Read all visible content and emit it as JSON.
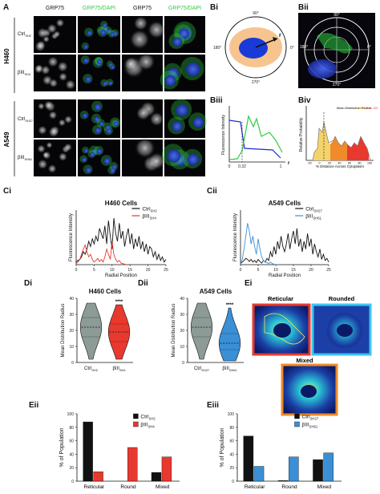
{
  "panel_letters": {
    "A": "A",
    "Bi": "Bi",
    "Bii": "Bii",
    "Biii": "Biii",
    "Biv": "Biv",
    "Ci": "Ci",
    "Cii": "Cii",
    "Di": "Di",
    "Dii": "Dii",
    "Ei": "Ei",
    "Eii": "Eii",
    "Eiii": "Eiii"
  },
  "panel_a": {
    "col_headers": [
      "GRP75",
      "GRP75/DAPI",
      "GRP75",
      "GRP75/DAPI"
    ],
    "col_header_colors": [
      "#ffffff",
      "#2ecc40",
      "#ffffff",
      "#2ecc40"
    ],
    "groups": [
      "H460",
      "A549"
    ],
    "rows": [
      {
        "base": "Ctrl",
        "sub": "SH2"
      },
      {
        "base": "βIII",
        "sub": "SH4"
      },
      {
        "base": "Ctrl",
        "sub": "SH27"
      },
      {
        "base": "βIII",
        "sub": "SH61"
      }
    ]
  },
  "panel_bi": {
    "angles": [
      "90°",
      "0°",
      "180°",
      "270°"
    ],
    "r_label": "r"
  },
  "panel_bii": {
    "angles": [
      "90°",
      "0°",
      "180°",
      "270°"
    ]
  },
  "panel_biii": {
    "ylabel": "Fluorescence Intensity",
    "x_ticks": [
      "0",
      "0.32",
      "1"
    ],
    "r_label": "r"
  },
  "panel_biv": {
    "ylabel": "Relative Probability",
    "xlabel": "% Distance Across Cytoplasm",
    "x_ticks": [
      "-20",
      "0",
      "20",
      "40",
      "60",
      "80",
      "100"
    ],
    "annotation": "Mean Distribution Radius",
    "legend_items": [
      "0-32",
      "32-66",
      "66-100"
    ]
  },
  "chart_data": [
    {
      "panel": "Ci",
      "type": "line",
      "title": "H460 Cells",
      "xlabel": "Radial Position",
      "ylabel": "Fluorescence Intensity",
      "xlim": [
        0,
        25
      ],
      "x_ticks": [
        "0",
        "5",
        "10",
        "15",
        "20",
        "25"
      ],
      "series": [
        {
          "name": "Ctrl",
          "sub": "SH2",
          "color": "#111111",
          "x": [
            0,
            0.5,
            1,
            1.5,
            2,
            2.5,
            3,
            3.5,
            4,
            4.5,
            5,
            5.5,
            6,
            6.5,
            7,
            7.5,
            8,
            8.5,
            9,
            9.5,
            10,
            10.5,
            11,
            11.5,
            12,
            12.5,
            13,
            13.5,
            14,
            14.5,
            15,
            15.5,
            16,
            16.5,
            17,
            17.5,
            18,
            18.5,
            19,
            19.5,
            20,
            20.5,
            21,
            21.5,
            22,
            22.5,
            23,
            23.5,
            24,
            24.5,
            25
          ],
          "y": [
            0.05,
            0.08,
            0.1,
            0.15,
            0.25,
            0.2,
            0.3,
            0.45,
            0.35,
            0.5,
            0.4,
            0.55,
            0.45,
            0.7,
            0.6,
            0.5,
            0.75,
            0.4,
            0.85,
            0.55,
            0.3,
            0.9,
            0.6,
            0.45,
            0.8,
            0.5,
            0.65,
            0.35,
            0.55,
            0.7,
            0.4,
            0.6,
            0.3,
            0.5,
            0.35,
            0.55,
            0.3,
            0.45,
            0.25,
            0.4,
            0.2,
            0.35,
            0.3,
            0.15,
            0.25,
            0.1,
            0.2,
            0.08,
            0.15,
            0.05,
            0.1
          ]
        },
        {
          "name": "βIII",
          "sub": "SH4",
          "color": "#e8392f",
          "x": [
            0,
            0.5,
            1,
            1.5,
            2,
            2.5,
            3,
            3.5,
            4,
            4.5,
            5,
            5.5,
            6,
            6.5,
            7,
            7.5,
            8,
            8.5,
            9,
            9.5,
            10,
            10.5,
            11,
            11.5,
            12,
            12.5,
            13,
            13.5,
            14
          ],
          "y": [
            0.02,
            0.05,
            0.1,
            0.2,
            0.3,
            0.38,
            0.25,
            0.15,
            0.2,
            0.1,
            0.05,
            0.08,
            0.12,
            0.06,
            0.1,
            0.05,
            0.15,
            0.3,
            0.2,
            0.1,
            0.45,
            0.2,
            0.1,
            0.05,
            0.08,
            0.03,
            0.02,
            0.01,
            0.0
          ]
        }
      ]
    },
    {
      "panel": "Cii",
      "type": "line",
      "title": "A549 Cells",
      "xlabel": "Radial Position",
      "ylabel": "Fluorescence Intensity",
      "xlim": [
        0,
        25
      ],
      "x_ticks": [
        "0",
        "5",
        "10",
        "15",
        "20",
        "25"
      ],
      "series": [
        {
          "name": "Ctrl",
          "sub": "SH27",
          "color": "#111111",
          "x": [
            0,
            0.5,
            1,
            1.5,
            2,
            2.5,
            3,
            3.5,
            4,
            4.5,
            5,
            5.5,
            6,
            6.5,
            7,
            7.5,
            8,
            8.5,
            9,
            9.5,
            10,
            10.5,
            11,
            11.5,
            12,
            12.5,
            13,
            13.5,
            14,
            14.5,
            15,
            15.5,
            16,
            16.5,
            17,
            17.5,
            18,
            18.5,
            19,
            19.5,
            20,
            20.5,
            21,
            21.5,
            22,
            22.5,
            23,
            23.5,
            24,
            24.5,
            25
          ],
          "y": [
            0.02,
            0.05,
            0.08,
            0.12,
            0.1,
            0.06,
            0.1,
            0.05,
            0.08,
            0.04,
            0.1,
            0.06,
            0.03,
            0.08,
            0.05,
            0.12,
            0.08,
            0.25,
            0.15,
            0.35,
            0.2,
            0.45,
            0.3,
            0.55,
            0.35,
            0.25,
            0.4,
            0.6,
            0.3,
            0.5,
            0.65,
            0.4,
            0.7,
            0.35,
            0.5,
            0.25,
            0.45,
            0.3,
            0.6,
            0.35,
            0.5,
            0.2,
            0.4,
            0.25,
            0.15,
            0.3,
            0.1,
            0.2,
            0.08,
            0.12,
            0.05
          ]
        },
        {
          "name": "βIII",
          "sub": "SH61",
          "color": "#3a8fd6",
          "x": [
            0,
            0.5,
            1,
            1.5,
            2,
            2.5,
            3,
            3.5,
            4,
            4.5,
            5,
            5.5,
            6,
            6.5,
            7,
            7.5,
            8,
            8.5,
            9,
            9.5,
            10
          ],
          "y": [
            0.02,
            0.1,
            0.3,
            0.55,
            0.8,
            0.65,
            0.4,
            0.55,
            0.35,
            0.2,
            0.5,
            0.3,
            0.15,
            0.08,
            0.05,
            0.04,
            0.02,
            0.05,
            0.02,
            0.01,
            0.0
          ]
        }
      ]
    },
    {
      "panel": "Di",
      "type": "violin",
      "title": "H460 Cells",
      "ylabel": "Mean Distribution Radius",
      "ylim": [
        0,
        40
      ],
      "y_ticks": [
        "0",
        "10",
        "20",
        "30",
        "40"
      ],
      "categories": [
        {
          "name": "Ctrl",
          "sub": "SH2"
        },
        {
          "name": "βIII",
          "sub": "SH4"
        }
      ],
      "colors": [
        "#8c9b96",
        "#e8392f"
      ],
      "medians": [
        22,
        19
      ],
      "quartiles": [
        [
          16,
          28
        ],
        [
          13,
          24
        ]
      ],
      "ranges": [
        [
          2,
          37
        ],
        [
          2,
          36
        ]
      ],
      "significance": "****"
    },
    {
      "panel": "Dii",
      "type": "violin",
      "title": "A549 Cells",
      "ylabel": "Mean Distribution Radius",
      "ylim": [
        0,
        40
      ],
      "y_ticks": [
        "0",
        "10",
        "20",
        "30",
        "40"
      ],
      "categories": [
        {
          "name": "Ctrl",
          "sub": "SH27"
        },
        {
          "name": "βIII",
          "sub": "SH61"
        }
      ],
      "colors": [
        "#8c9b96",
        "#3a8fd6"
      ],
      "medians": [
        22,
        12
      ],
      "quartiles": [
        [
          16,
          28
        ],
        [
          8,
          18
        ]
      ],
      "ranges": [
        [
          2,
          37
        ],
        [
          1,
          34
        ]
      ],
      "significance": "****"
    },
    {
      "panel": "Eii",
      "type": "bar",
      "ylabel": "% of Population",
      "ylim": [
        0,
        100
      ],
      "y_ticks": [
        "0",
        "20",
        "40",
        "60",
        "80",
        "100"
      ],
      "categories": [
        "Reticular",
        "Round",
        "Mixed"
      ],
      "series": [
        {
          "name": "Ctrl",
          "sub": "SH2",
          "color": "#111111",
          "values": [
            88,
            0,
            13
          ]
        },
        {
          "name": "βIII",
          "sub": "SH4",
          "color": "#e8392f",
          "values": [
            14,
            50,
            36
          ]
        }
      ]
    },
    {
      "panel": "Eiii",
      "type": "bar",
      "ylabel": "% of Population",
      "ylim": [
        0,
        100
      ],
      "y_ticks": [
        "0",
        "20",
        "40",
        "60",
        "80",
        "100"
      ],
      "categories": [
        "Reticular",
        "Round",
        "Mixed"
      ],
      "series": [
        {
          "name": "Ctrl",
          "sub": "SH27",
          "color": "#111111",
          "values": [
            67,
            1,
            32
          ]
        },
        {
          "name": "βIII",
          "sub": "SH61",
          "color": "#3a8fd6",
          "values": [
            22,
            36,
            42
          ]
        }
      ]
    }
  ],
  "panel_ei": {
    "labels": [
      "Reticular",
      "Rounded",
      "Mixed"
    ],
    "border_colors": [
      "#e8392f",
      "#3ac6f0",
      "#f08a2a"
    ]
  }
}
